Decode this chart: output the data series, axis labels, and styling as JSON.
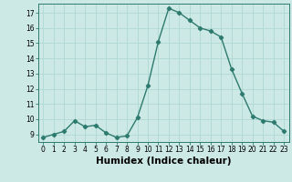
{
  "xlabel": "Humidex (Indice chaleur)",
  "x": [
    0,
    1,
    2,
    3,
    4,
    5,
    6,
    7,
    8,
    9,
    10,
    11,
    12,
    13,
    14,
    15,
    16,
    17,
    18,
    19,
    20,
    21,
    22,
    23
  ],
  "y": [
    8.8,
    9.0,
    9.2,
    9.9,
    9.5,
    9.6,
    9.1,
    8.8,
    8.9,
    10.1,
    12.2,
    15.1,
    17.3,
    17.0,
    16.5,
    16.0,
    15.8,
    15.4,
    13.3,
    11.7,
    10.2,
    9.9,
    9.8,
    9.2
  ],
  "line_color": "#2d7a6e",
  "marker": "D",
  "marker_size": 2.2,
  "bg_color": "#cce9e5",
  "grid_color": "#b0d8d4",
  "axis_bg": "#cce9e5",
  "ylim": [
    8.5,
    17.6
  ],
  "xlim": [
    -0.5,
    23.5
  ],
  "yticks": [
    9,
    10,
    11,
    12,
    13,
    14,
    15,
    16,
    17
  ],
  "xticks": [
    0,
    1,
    2,
    3,
    4,
    5,
    6,
    7,
    8,
    9,
    10,
    11,
    12,
    13,
    14,
    15,
    16,
    17,
    18,
    19,
    20,
    21,
    22,
    23
  ],
  "tick_fontsize": 5.5,
  "xlabel_fontsize": 7.5,
  "line_width": 1.0
}
